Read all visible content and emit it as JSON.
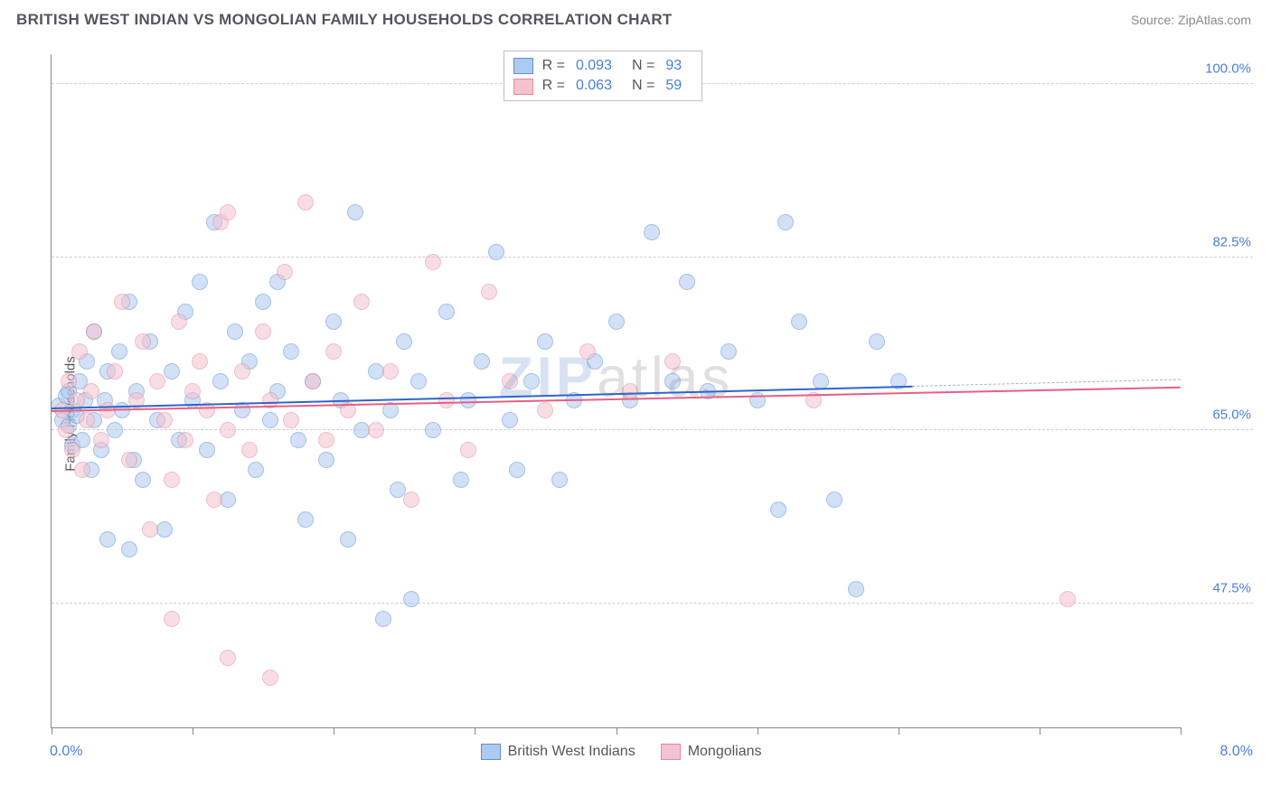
{
  "header": {
    "title": "BRITISH WEST INDIAN VS MONGOLIAN FAMILY HOUSEHOLDS CORRELATION CHART",
    "source": "Source: ZipAtlas.com"
  },
  "chart": {
    "type": "scatter",
    "ylabel": "Family Households",
    "watermark": {
      "part1": "ZIP",
      "part2": "atlas"
    },
    "xlim": [
      0,
      8
    ],
    "ylim": [
      35,
      103
    ],
    "x_axis": {
      "label_left": "0.0%",
      "label_right": "8.0%",
      "tick_positions": [
        0,
        1,
        2,
        3,
        4,
        5,
        6,
        7,
        8
      ]
    },
    "y_gridlines": [
      {
        "value": 100.0,
        "label": "100.0%"
      },
      {
        "value": 82.5,
        "label": "82.5%"
      },
      {
        "value": 65.0,
        "label": "65.0%"
      },
      {
        "value": 47.5,
        "label": "47.5%"
      }
    ],
    "marker_radius": 9,
    "marker_opacity": 0.55,
    "series": [
      {
        "key": "bwi",
        "label": "British West Indians",
        "R": "0.093",
        "N": "93",
        "fill": "#aecaf0",
        "stroke": "#5b8fd6",
        "trend": {
          "y_start": 67.3,
          "y_end": 70.2,
          "solid_end_x": 6.1,
          "color": "#2e66c8",
          "dash_color": "#9ab8c9"
        },
        "points": [
          [
            0.05,
            67.5
          ],
          [
            0.08,
            66.0
          ],
          [
            0.1,
            68.5
          ],
          [
            0.12,
            65.5
          ],
          [
            0.12,
            69.0
          ],
          [
            0.15,
            67.0
          ],
          [
            0.15,
            63.5
          ],
          [
            0.18,
            66.5
          ],
          [
            0.2,
            70.0
          ],
          [
            0.22,
            64.0
          ],
          [
            0.24,
            68.0
          ],
          [
            0.25,
            72.0
          ],
          [
            0.28,
            61.0
          ],
          [
            0.3,
            66.0
          ],
          [
            0.3,
            75.0
          ],
          [
            0.35,
            63.0
          ],
          [
            0.38,
            68.0
          ],
          [
            0.4,
            71.0
          ],
          [
            0.4,
            54.0
          ],
          [
            0.45,
            65.0
          ],
          [
            0.48,
            73.0
          ],
          [
            0.5,
            67.0
          ],
          [
            0.55,
            78.0
          ],
          [
            0.58,
            62.0
          ],
          [
            0.6,
            69.0
          ],
          [
            0.65,
            60.0
          ],
          [
            0.7,
            74.0
          ],
          [
            0.75,
            66.0
          ],
          [
            0.8,
            55.0
          ],
          [
            0.85,
            71.0
          ],
          [
            0.9,
            64.0
          ],
          [
            0.95,
            77.0
          ],
          [
            1.0,
            68.0
          ],
          [
            1.05,
            80.0
          ],
          [
            1.1,
            63.0
          ],
          [
            1.15,
            86.0
          ],
          [
            1.2,
            70.0
          ],
          [
            1.25,
            58.0
          ],
          [
            1.3,
            75.0
          ],
          [
            1.35,
            67.0
          ],
          [
            1.4,
            72.0
          ],
          [
            1.45,
            61.0
          ],
          [
            1.5,
            78.0
          ],
          [
            1.55,
            66.0
          ],
          [
            1.6,
            69.0
          ],
          [
            1.7,
            73.0
          ],
          [
            1.75,
            64.0
          ],
          [
            1.8,
            56.0
          ],
          [
            1.85,
            70.0
          ],
          [
            1.95,
            62.0
          ],
          [
            2.0,
            76.0
          ],
          [
            2.05,
            68.0
          ],
          [
            2.1,
            54.0
          ],
          [
            2.15,
            87.0
          ],
          [
            2.2,
            65.0
          ],
          [
            2.3,
            71.0
          ],
          [
            2.35,
            46.0
          ],
          [
            2.4,
            67.0
          ],
          [
            2.45,
            59.0
          ],
          [
            2.5,
            74.0
          ],
          [
            2.55,
            48.0
          ],
          [
            2.6,
            70.0
          ],
          [
            2.7,
            65.0
          ],
          [
            2.8,
            77.0
          ],
          [
            2.9,
            60.0
          ],
          [
            2.95,
            68.0
          ],
          [
            3.05,
            72.0
          ],
          [
            3.15,
            83.0
          ],
          [
            3.25,
            66.0
          ],
          [
            3.3,
            61.0
          ],
          [
            3.4,
            70.0
          ],
          [
            3.5,
            74.0
          ],
          [
            3.6,
            60.0
          ],
          [
            3.7,
            68.0
          ],
          [
            3.85,
            72.0
          ],
          [
            4.0,
            76.0
          ],
          [
            4.1,
            68.0
          ],
          [
            4.25,
            85.0
          ],
          [
            4.4,
            70.0
          ],
          [
            4.5,
            80.0
          ],
          [
            4.65,
            69.0
          ],
          [
            4.8,
            73.0
          ],
          [
            5.0,
            68.0
          ],
          [
            5.15,
            57.0
          ],
          [
            5.3,
            76.0
          ],
          [
            5.45,
            70.0
          ],
          [
            5.55,
            58.0
          ],
          [
            5.7,
            49.0
          ],
          [
            5.85,
            74.0
          ],
          [
            6.0,
            70.0
          ],
          [
            5.2,
            86.0
          ],
          [
            1.6,
            80.0
          ],
          [
            0.55,
            53.0
          ]
        ]
      },
      {
        "key": "mong",
        "label": "Mongolians",
        "R": "0.063",
        "N": "59",
        "fill": "#f3c3cf",
        "stroke": "#e18aa0",
        "trend": {
          "y_start": 67.0,
          "y_end": 69.4,
          "solid_end_x": 8.0,
          "color": "#e85f85",
          "dash_color": "#e85f85"
        },
        "points": [
          [
            0.08,
            67.0
          ],
          [
            0.1,
            65.0
          ],
          [
            0.12,
            70.0
          ],
          [
            0.15,
            63.0
          ],
          [
            0.18,
            68.0
          ],
          [
            0.2,
            73.0
          ],
          [
            0.22,
            61.0
          ],
          [
            0.25,
            66.0
          ],
          [
            0.28,
            69.0
          ],
          [
            0.3,
            75.0
          ],
          [
            0.35,
            64.0
          ],
          [
            0.4,
            67.0
          ],
          [
            0.45,
            71.0
          ],
          [
            0.5,
            78.0
          ],
          [
            0.55,
            62.0
          ],
          [
            0.6,
            68.0
          ],
          [
            0.65,
            74.0
          ],
          [
            0.7,
            55.0
          ],
          [
            0.75,
            70.0
          ],
          [
            0.8,
            66.0
          ],
          [
            0.85,
            60.0
          ],
          [
            0.9,
            76.0
          ],
          [
            0.95,
            64.0
          ],
          [
            1.0,
            69.0
          ],
          [
            1.05,
            72.0
          ],
          [
            1.1,
            67.0
          ],
          [
            1.15,
            58.0
          ],
          [
            1.2,
            86.0
          ],
          [
            1.25,
            65.0
          ],
          [
            1.35,
            71.0
          ],
          [
            1.4,
            63.0
          ],
          [
            1.5,
            75.0
          ],
          [
            1.55,
            68.0
          ],
          [
            1.65,
            81.0
          ],
          [
            1.7,
            66.0
          ],
          [
            1.8,
            88.0
          ],
          [
            1.85,
            70.0
          ],
          [
            1.95,
            64.0
          ],
          [
            2.0,
            73.0
          ],
          [
            2.1,
            67.0
          ],
          [
            2.2,
            78.0
          ],
          [
            2.3,
            65.0
          ],
          [
            2.4,
            71.0
          ],
          [
            2.55,
            58.0
          ],
          [
            2.7,
            82.0
          ],
          [
            2.8,
            68.0
          ],
          [
            2.95,
            63.0
          ],
          [
            3.1,
            79.0
          ],
          [
            3.25,
            70.0
          ],
          [
            3.5,
            67.0
          ],
          [
            3.8,
            73.0
          ],
          [
            4.1,
            69.0
          ],
          [
            4.4,
            72.0
          ],
          [
            5.4,
            68.0
          ],
          [
            7.2,
            48.0
          ],
          [
            0.85,
            46.0
          ],
          [
            1.25,
            42.0
          ],
          [
            1.55,
            40.0
          ],
          [
            1.25,
            87.0
          ]
        ]
      }
    ],
    "legend_top": {
      "R_label": "R =",
      "N_label": "N ="
    },
    "colors": {
      "title": "#555560",
      "source": "#888890",
      "axis": "#888888",
      "grid": "#cfcfd4",
      "tick_label": "#4a7fd8"
    },
    "typography": {
      "title_fontsize": 17,
      "label_fontsize": 15,
      "legend_fontsize": 16,
      "tick_fontsize": 15
    }
  }
}
